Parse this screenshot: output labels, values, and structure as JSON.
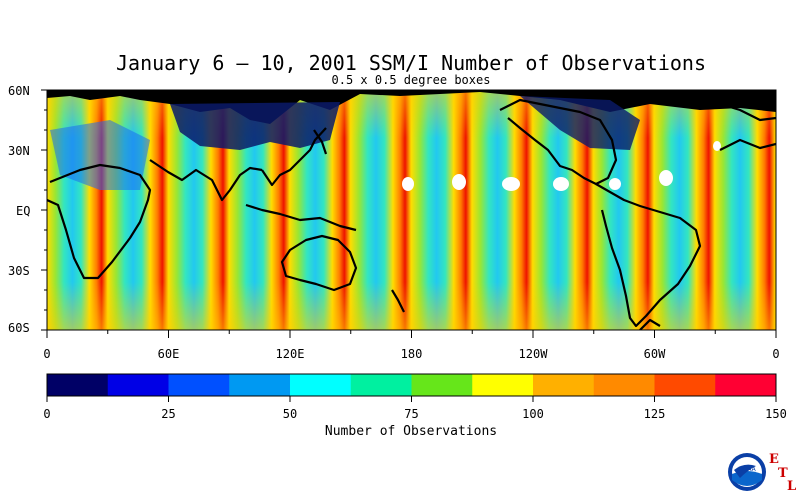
{
  "title": "January 6 – 10, 2001 SSM/I Number of Observations",
  "subtitle": "0.5 x 0.5 degree boxes",
  "lat_labels": [
    "60N",
    "30N",
    "EQ",
    "30S",
    "60S"
  ],
  "lon_labels": [
    "0",
    "60E",
    "120E",
    "180",
    "120W",
    "60W",
    "0"
  ],
  "colorbar": {
    "ticks": [
      "0",
      "25",
      "50",
      "75",
      "100",
      "125",
      "150"
    ],
    "title": "Number of Observations",
    "colors": [
      "#000066",
      "#0000e6",
      "#0050ff",
      "#0099f2",
      "#00ffff",
      "#00f0a0",
      "#66e61a",
      "#ffff00",
      "#ffb000",
      "#ff8a00",
      "#ff4a00",
      "#ff0033"
    ]
  },
  "logo": {
    "text": "NOAA",
    "letters": [
      "E",
      "T",
      "L"
    ]
  },
  "chart_data": {
    "type": "heatmap",
    "title": "January 6 – 10, 2001 SSM/I Number of Observations",
    "subtitle": "0.5 x 0.5 degree boxes",
    "lat_range": [
      -60,
      60
    ],
    "lon_range": [
      0,
      360
    ],
    "colorbar_range": [
      0,
      150
    ],
    "colorbar_title": "Number of Observations"
  }
}
